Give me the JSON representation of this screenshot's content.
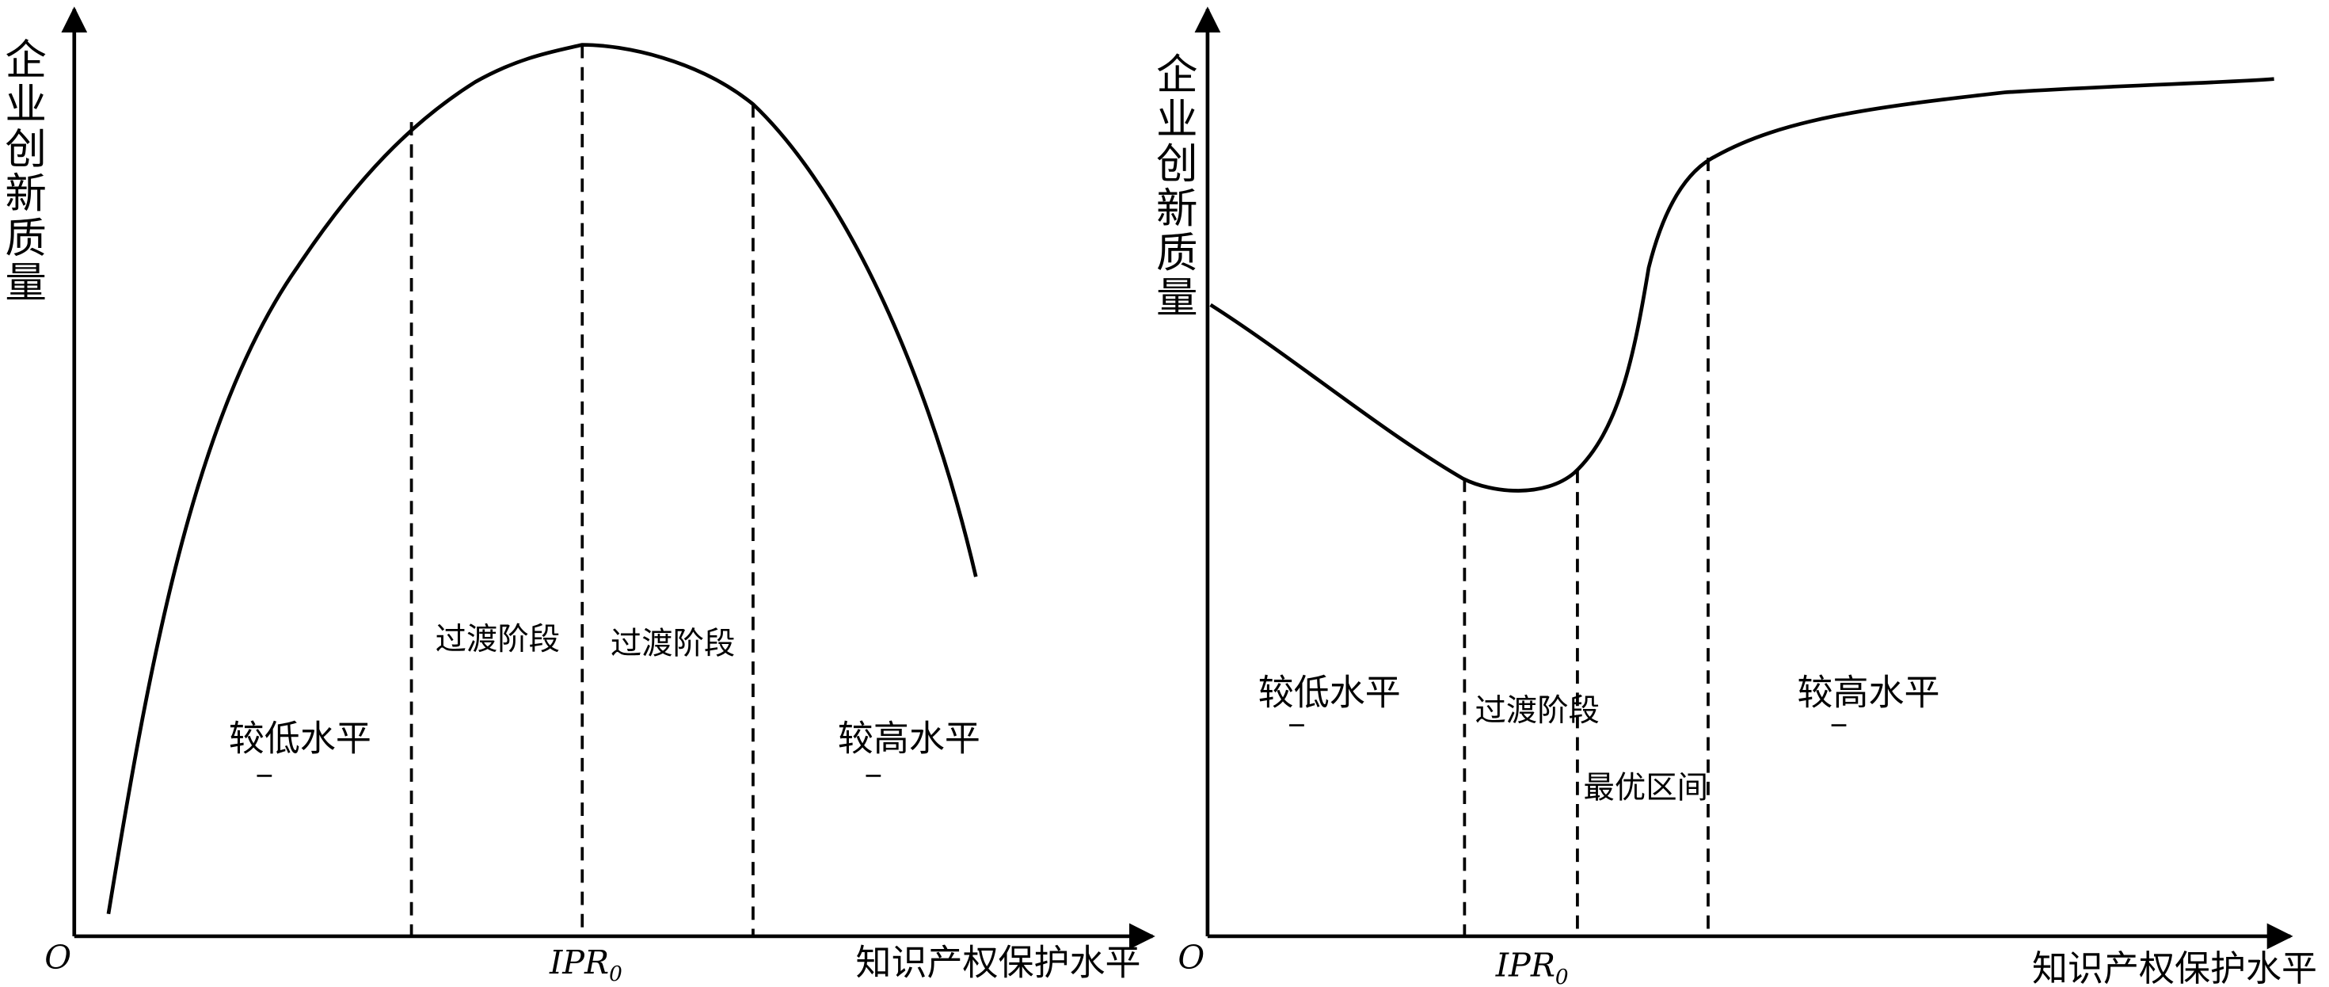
{
  "left_panel": {
    "y_axis_label": "企业创新质量",
    "x_axis_label": "知识产权保护水平",
    "origin": "O",
    "marker": {
      "main": "IPR",
      "sub": "0"
    },
    "regions": [
      "较低水平",
      "过渡阶段",
      "过渡阶段",
      "较高水平"
    ]
  },
  "right_panel": {
    "y_axis_label": "企业创新质量",
    "x_axis_label": "知识产权保护水平",
    "origin": "O",
    "marker": {
      "main": "IPR",
      "sub": "0"
    },
    "regions": [
      "较低水平",
      "过渡阶段",
      "最优区间",
      "较高水平"
    ]
  }
}
